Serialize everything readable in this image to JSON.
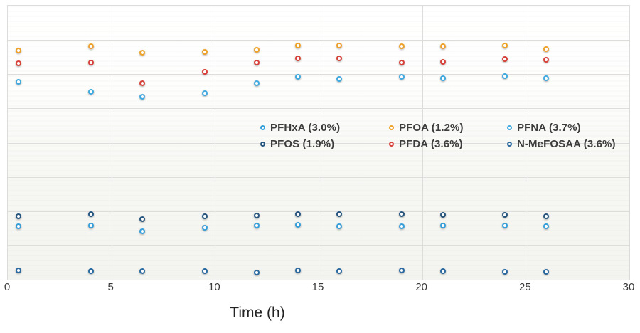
{
  "figure": {
    "background": "#ffffff",
    "gridline_color": "#dcdcda"
  },
  "legend": {
    "position": "on-plot center-right, 2 rows x 3 columns",
    "items": [
      {
        "label": "PFHxA (3.0%)",
        "series": "PFHxA",
        "color": "#36A0DB"
      },
      {
        "label": "PFOA (1.2%)",
        "series": "PFOA",
        "color": "#EFA22A"
      },
      {
        "label": "PFNA (3.7%)",
        "series": "PFNA",
        "color": "#41ABE1"
      },
      {
        "label": "PFOS (1.9%)",
        "series": "PFOS",
        "color": "#27567F"
      },
      {
        "label": "PFDA (3.6%)",
        "series": "PFDA",
        "color": "#D8423B"
      },
      {
        "label": "N-MeFOSAA (3.6%)",
        "series": "N-MeFOSAA",
        "color": "#2B6AA0"
      }
    ]
  },
  "chart_data": {
    "type": "scatter",
    "title": "",
    "xlabel": "Time (h)",
    "ylabel": "",
    "xlim": [
      0,
      30
    ],
    "x_ticks": [
      0,
      5,
      10,
      15,
      20,
      25,
      30
    ],
    "x_tick_labels": [
      "0",
      "5",
      "10",
      "15",
      "20",
      "25",
      "30"
    ],
    "ylim": [
      0,
      8
    ],
    "y_axis_note": "no y tick labels shown; values given in horizontal-gridline units (8 equal divisions, 0 = x-axis, 8 = top border)",
    "grid": true,
    "legend_position": "inside plot, center-right",
    "x": [
      0.5,
      4,
      6.5,
      9.5,
      12,
      14,
      16,
      19,
      21,
      24,
      26
    ],
    "series": [
      {
        "name": "PFOA",
        "color": "#EFA22A",
        "marker": "open-circle",
        "values": [
          6.69,
          6.82,
          6.63,
          6.65,
          6.72,
          6.84,
          6.84,
          6.82,
          6.82,
          6.84,
          6.74
        ]
      },
      {
        "name": "PFDA",
        "color": "#D8423B",
        "marker": "open-circle",
        "values": [
          6.32,
          6.34,
          5.74,
          6.07,
          6.34,
          6.47,
          6.47,
          6.34,
          6.36,
          6.44,
          6.42
        ]
      },
      {
        "name": "PFNA",
        "color": "#41ABE1",
        "marker": "open-circle",
        "values": [
          5.78,
          5.49,
          5.34,
          5.45,
          5.74,
          5.93,
          5.86,
          5.93,
          5.88,
          5.95,
          5.88
        ]
      },
      {
        "name": "PFOS",
        "color": "#27567F",
        "marker": "open-circle",
        "values": [
          1.85,
          1.91,
          1.77,
          1.85,
          1.87,
          1.91,
          1.91,
          1.91,
          1.89,
          1.89,
          1.85
        ]
      },
      {
        "name": "PFHxA",
        "color": "#36A0DB",
        "marker": "open-circle",
        "values": [
          1.56,
          1.58,
          1.41,
          1.52,
          1.58,
          1.6,
          1.56,
          1.56,
          1.58,
          1.58,
          1.56
        ]
      },
      {
        "name": "N-MeFOSAA",
        "color": "#2B6AA0",
        "marker": "open-circle",
        "values": [
          0.27,
          0.25,
          0.25,
          0.25,
          0.21,
          0.27,
          0.25,
          0.27,
          0.25,
          0.23,
          0.23
        ]
      }
    ]
  }
}
